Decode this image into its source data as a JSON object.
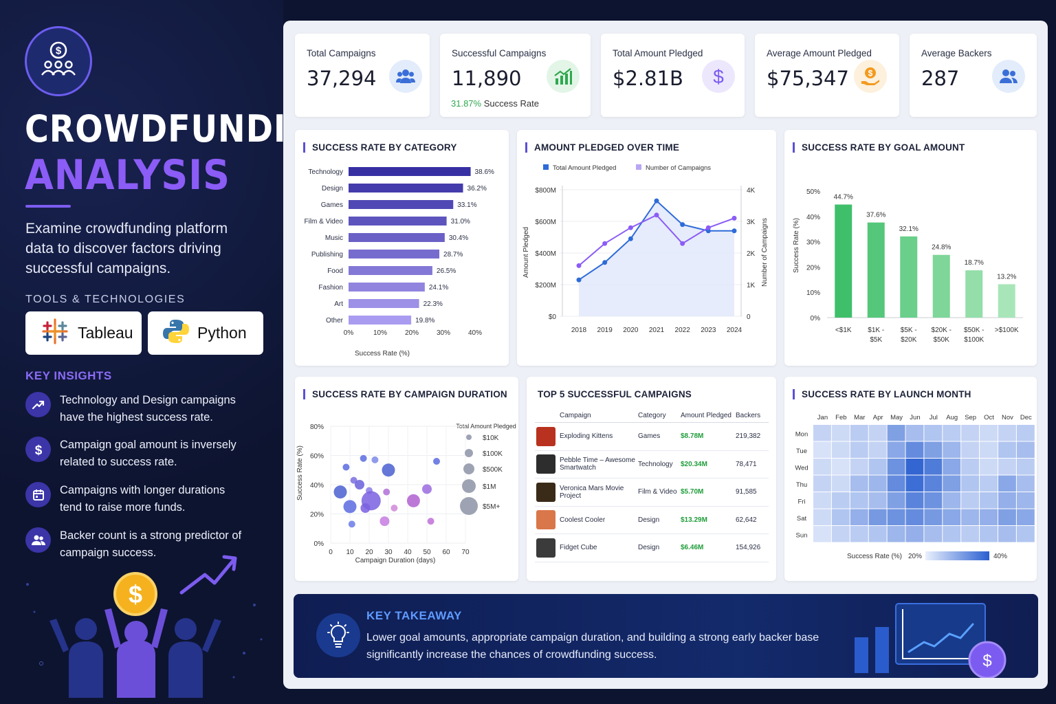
{
  "sidebar": {
    "title_line1": "CROWDFUNDING",
    "title_line2": "ANALYSIS",
    "description": "Examine crowdfunding platform data to discover factors driving successful campaigns.",
    "tools_heading": "TOOLS & TECHNOLOGIES",
    "tools": [
      "Tableau",
      "Python"
    ],
    "insights_heading": "KEY INSIGHTS",
    "insights": [
      {
        "icon": "trend-up-icon",
        "text": "Technology and Design campaigns have the highest success rate."
      },
      {
        "icon": "dollar-icon",
        "text": "Campaign goal amount is inversely related to success rate."
      },
      {
        "icon": "calendar-icon",
        "text": "Campaigns with longer durations tend to raise more funds."
      },
      {
        "icon": "users-icon",
        "text": "Backer count is a strong predictor of campaign success."
      }
    ]
  },
  "kpis": [
    {
      "label": "Total Campaigns",
      "value": "37,294",
      "icon": "users-icon",
      "color": "#3b6fd8"
    },
    {
      "label": "Successful Campaigns",
      "value": "11,890",
      "sub_value": "31.87%",
      "sub_label": "Success Rate",
      "icon": "bar-chart-icon",
      "color": "#2fa84f"
    },
    {
      "label": "Total Amount Pledged",
      "value": "$2.81B",
      "icon": "dollar-icon",
      "color": "#7c5cf0"
    },
    {
      "label": "Average Amount Pledged",
      "value": "$75,347",
      "icon": "hand-coin-icon",
      "color": "#f39a1e"
    },
    {
      "label": "Average Backers",
      "value": "287",
      "icon": "users-icon",
      "color": "#3b6fd8"
    }
  ],
  "charts": {
    "category_title": "SUCCESS RATE BY CATEGORY",
    "category_xlabel": "Success Rate (%)",
    "time_title": "AMOUNT PLEDGED OVER TIME",
    "time_ylabel_left": "Amount Pledged",
    "time_ylabel_right": "Number of Campaigns",
    "goal_title": "SUCCESS RATE BY GOAL AMOUNT",
    "goal_ylabel": "Success Rate (%)",
    "duration_title": "SUCCESS RATE BY CAMPAIGN DURATION",
    "duration_xlabel": "Campaign Duration (days)",
    "duration_ylabel": "Success Rate (%)",
    "duration_legend_title": "Total Amount Pledged",
    "month_title": "SUCCESS RATE BY LAUNCH MONTH",
    "month_legend_label": "Success Rate (%)",
    "month_legend_min": "20%",
    "month_legend_max": "40%"
  },
  "chart_data": [
    {
      "type": "bar",
      "orientation": "horizontal",
      "title": "SUCCESS RATE BY CATEGORY",
      "xlabel": "Success Rate (%)",
      "categories": [
        "Technology",
        "Design",
        "Games",
        "Film & Video",
        "Music",
        "Publishing",
        "Food",
        "Fashion",
        "Art",
        "Other"
      ],
      "values": [
        38.6,
        36.2,
        33.1,
        31.0,
        30.4,
        28.7,
        26.5,
        24.1,
        22.3,
        19.8
      ],
      "value_labels": [
        "38.6%",
        "36.2%",
        "33.1%",
        "31.0%",
        "30.4%",
        "28.7%",
        "26.5%",
        "24.1%",
        "22.3%",
        "19.8%"
      ],
      "xlim": [
        0,
        40
      ],
      "xticks": [
        "0%",
        "10%",
        "20%",
        "30%",
        "40%"
      ],
      "color_start": "#3730a3",
      "color_end": "#a99cf0"
    },
    {
      "type": "line",
      "title": "AMOUNT PLEDGED OVER TIME",
      "x": [
        2018,
        2019,
        2020,
        2021,
        2022,
        2023,
        2024
      ],
      "xticks": [
        "2018",
        "2019",
        "2020",
        "2021",
        "2022",
        "2023",
        "2024"
      ],
      "series": [
        {
          "name": "Total Amount Pledged",
          "axis": "left",
          "values": [
            230,
            340,
            490,
            730,
            580,
            540,
            540
          ],
          "color": "#2e6bd8"
        },
        {
          "name": "Number of Campaigns",
          "axis": "right",
          "values": [
            1.6,
            2.3,
            2.8,
            3.2,
            2.3,
            2.8,
            3.1
          ],
          "color": "#8b5cf6"
        }
      ],
      "ylim_left": [
        0,
        800
      ],
      "yticks_left": [
        "$0",
        "$200M",
        "$400M",
        "$600M",
        "$800M"
      ],
      "ylim_right": [
        0,
        4
      ],
      "yticks_right": [
        "0",
        "1K",
        "2K",
        "3K",
        "4K"
      ],
      "legend": "top-left"
    },
    {
      "type": "bar",
      "title": "SUCCESS RATE BY GOAL AMOUNT",
      "categories": [
        "<$1K",
        "$1K - $5K",
        "$5K - $20K",
        "$20K - $50K",
        "$50K - $100K",
        ">$100K"
      ],
      "category_lines": [
        [
          "<$1K"
        ],
        [
          "$1K -",
          "$5K"
        ],
        [
          "$5K -",
          "$20K"
        ],
        [
          "$20K -",
          "$50K"
        ],
        [
          "$50K -",
          "$100K"
        ],
        [
          ">$100K"
        ]
      ],
      "values": [
        44.7,
        37.6,
        32.1,
        24.8,
        18.7,
        13.2
      ],
      "value_labels": [
        "44.7%",
        "37.6%",
        "32.1%",
        "24.8%",
        "18.7%",
        "13.2%"
      ],
      "ylim": [
        0,
        50
      ],
      "yticks": [
        "0%",
        "10%",
        "20%",
        "30%",
        "40%",
        "50%"
      ],
      "color_start": "#3fbf6a",
      "color_end": "#a8e6b9"
    },
    {
      "type": "scatter",
      "title": "SUCCESS RATE BY CAMPAIGN DURATION",
      "xlabel": "Campaign Duration (days)",
      "ylabel": "Success Rate (%)",
      "xlim": [
        0,
        70
      ],
      "xticks": [
        "0",
        "10",
        "20",
        "30",
        "40",
        "50",
        "60",
        "70"
      ],
      "ylim": [
        0,
        80
      ],
      "yticks": [
        "0%",
        "20%",
        "40%",
        "60%",
        "80%"
      ],
      "points": [
        {
          "x": 5,
          "y": 35,
          "s": 3,
          "c": "#4a5fd0"
        },
        {
          "x": 8,
          "y": 52,
          "s": 1,
          "c": "#5b6be0"
        },
        {
          "x": 10,
          "y": 25,
          "s": 3,
          "c": "#5b6be0"
        },
        {
          "x": 11,
          "y": 13,
          "s": 1,
          "c": "#6b7be8"
        },
        {
          "x": 12,
          "y": 43,
          "s": 1,
          "c": "#7a6de0"
        },
        {
          "x": 15,
          "y": 40,
          "s": 2,
          "c": "#6a5fdb"
        },
        {
          "x": 17,
          "y": 58,
          "s": 1,
          "c": "#5b6be0"
        },
        {
          "x": 18,
          "y": 24,
          "s": 2,
          "c": "#7a5fe0"
        },
        {
          "x": 20,
          "y": 36,
          "s": 1,
          "c": "#8a7de8"
        },
        {
          "x": 21,
          "y": 29,
          "s": 5,
          "c": "#7a60e0"
        },
        {
          "x": 23,
          "y": 57,
          "s": 1,
          "c": "#7c8ae8"
        },
        {
          "x": 28,
          "y": 15,
          "s": 2,
          "c": "#c77be0"
        },
        {
          "x": 29,
          "y": 35,
          "s": 1,
          "c": "#b070d8"
        },
        {
          "x": 30,
          "y": 50,
          "s": 3,
          "c": "#4a5fd0"
        },
        {
          "x": 33,
          "y": 24,
          "s": 1,
          "c": "#d088d8"
        },
        {
          "x": 43,
          "y": 29,
          "s": 3,
          "c": "#b060d0"
        },
        {
          "x": 50,
          "y": 37,
          "s": 2,
          "c": "#9a6be0"
        },
        {
          "x": 52,
          "y": 15,
          "s": 1,
          "c": "#c070d8"
        },
        {
          "x": 55,
          "y": 56,
          "s": 1,
          "c": "#5b6be0"
        }
      ],
      "size_legend": [
        "$10K",
        "$100K",
        "$500K",
        "$1M",
        "$5M+"
      ],
      "size_legend_title": "Total Amount Pledged"
    },
    {
      "type": "heatmap",
      "title": "SUCCESS RATE BY LAUNCH MONTH",
      "columns": [
        "Jan",
        "Feb",
        "Mar",
        "Apr",
        "May",
        "Jun",
        "Jul",
        "Aug",
        "Sep",
        "Oct",
        "Nov",
        "Dec"
      ],
      "rows": [
        "Mon",
        "Tue",
        "Wed",
        "Thu",
        "Fri",
        "Sat",
        "Sun"
      ],
      "values": [
        [
          24,
          23,
          25,
          24,
          31,
          27,
          26,
          25,
          24,
          23,
          24,
          25
        ],
        [
          22,
          23,
          25,
          24,
          30,
          34,
          31,
          28,
          24,
          23,
          26,
          27
        ],
        [
          23,
          22,
          24,
          26,
          33,
          39,
          36,
          30,
          25,
          23,
          24,
          25
        ],
        [
          24,
          23,
          27,
          28,
          34,
          38,
          35,
          31,
          26,
          25,
          30,
          27
        ],
        [
          23,
          25,
          26,
          27,
          31,
          35,
          33,
          28,
          25,
          26,
          29,
          28
        ],
        [
          23,
          26,
          29,
          32,
          33,
          34,
          32,
          30,
          28,
          29,
          31,
          30
        ],
        [
          22,
          24,
          25,
          26,
          28,
          29,
          27,
          26,
          25,
          26,
          27,
          26
        ]
      ],
      "vmin": 20,
      "vmax": 40,
      "colorbar_label": "Success Rate (%)",
      "color_low": "#eaf0fd",
      "color_high": "#2a5fd0"
    }
  ],
  "top_campaigns": {
    "title": "TOP 5 SUCCESSFUL CAMPAIGNS",
    "headers": [
      "Campaign",
      "Category",
      "Amount Pledged",
      "Backers"
    ],
    "rows": [
      {
        "name": "Exploding Kittens",
        "category": "Games",
        "amount": "$8.78M",
        "backers": "219,382",
        "thumb_color": "#b8321f"
      },
      {
        "name": "Pebble Time – Awesome Smartwatch",
        "category": "Technology",
        "amount": "$20.34M",
        "backers": "78,471",
        "thumb_color": "#2d2d2d"
      },
      {
        "name": "Veronica Mars Movie Project",
        "category": "Film & Video",
        "amount": "$5.70M",
        "backers": "91,585",
        "thumb_color": "#3a2a18"
      },
      {
        "name": "Coolest Cooler",
        "category": "Design",
        "amount": "$13.29M",
        "backers": "62,642",
        "thumb_color": "#d9774a"
      },
      {
        "name": "Fidget Cube",
        "category": "Design",
        "amount": "$6.46M",
        "backers": "154,926",
        "thumb_color": "#3b3b3b"
      }
    ]
  },
  "takeaway": {
    "heading": "KEY TAKEAWAY",
    "text": "Lower goal amounts, appropriate campaign duration, and building a strong early backer base significantly increase the chances of crowdfunding success."
  }
}
